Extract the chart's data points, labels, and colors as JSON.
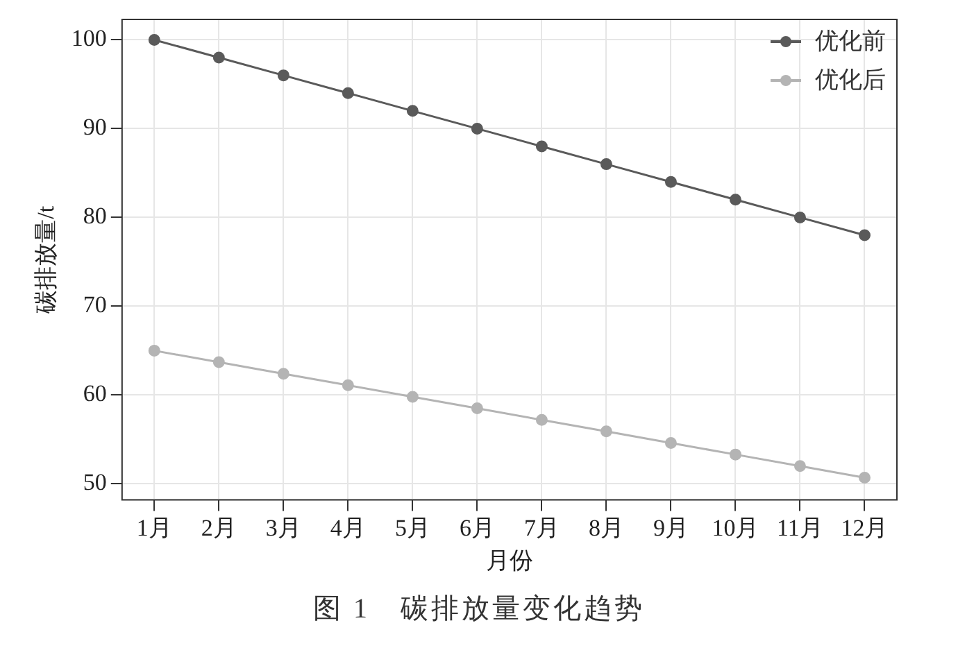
{
  "chart_data": {
    "type": "line",
    "xlabel": "月份",
    "ylabel": "碳排放量/t",
    "categories": [
      "1月",
      "2月",
      "3月",
      "4月",
      "5月",
      "6月",
      "7月",
      "8月",
      "9月",
      "10月",
      "11月",
      "12月"
    ],
    "series": [
      {
        "name": "优化前",
        "color": "#5a5a5a",
        "values": [
          100,
          98,
          96,
          94,
          92,
          90,
          88,
          86,
          84,
          82,
          80,
          78
        ]
      },
      {
        "name": "优化后",
        "color": "#b4b4b4",
        "values": [
          65,
          63.7,
          62.4,
          61.1,
          59.8,
          58.5,
          57.2,
          55.9,
          54.6,
          53.3,
          52,
          50.7
        ]
      }
    ],
    "ylim": [
      48.2,
      102.3
    ],
    "yticks": [
      50,
      60,
      70,
      80,
      90,
      100
    ],
    "grid": true,
    "legend": "top right",
    "marker": "circle",
    "line_style": "solid",
    "annotations": [
      "图 1　碳排放量变化趋势"
    ]
  }
}
